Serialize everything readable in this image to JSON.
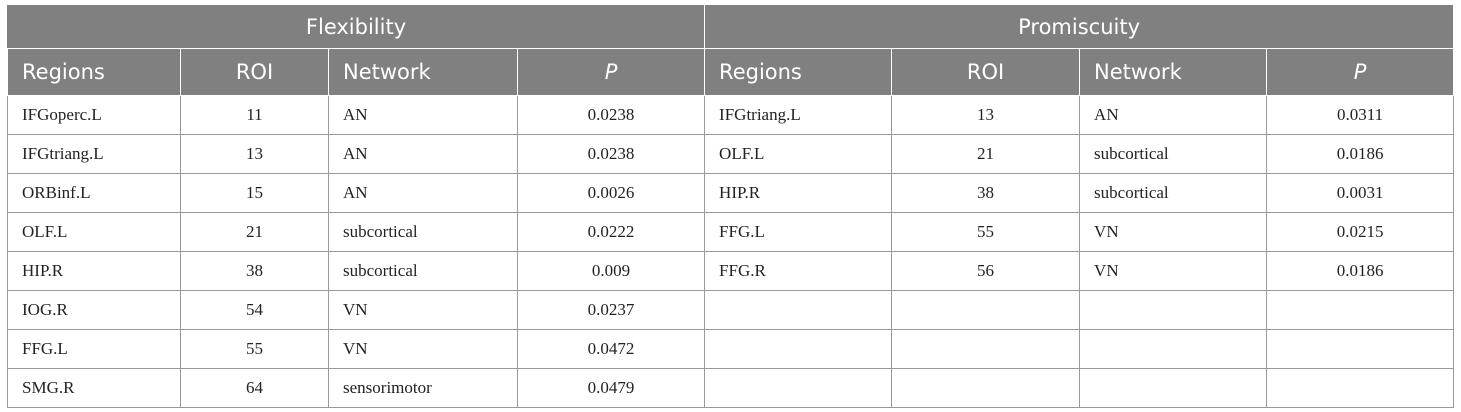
{
  "tables": [
    {
      "title": "Flexibility",
      "columns": [
        "Regions",
        "ROI",
        "Network",
        "P"
      ],
      "rows": [
        [
          "IFGoperc.L",
          11,
          "AN",
          0.0238
        ],
        [
          "IFGtriang.L",
          13,
          "AN",
          0.0238
        ],
        [
          "ORBinf.L",
          15,
          "AN",
          0.0026
        ],
        [
          "OLF.L",
          21,
          "subcortical",
          0.0222
        ],
        [
          "HIP.R",
          38,
          "subcortical",
          0.009
        ],
        [
          "IOG.R",
          54,
          "VN",
          0.0237
        ],
        [
          "FFG.L",
          55,
          "VN",
          0.0472
        ],
        [
          "SMG.R",
          64,
          "sensorimotor",
          0.0479
        ]
      ]
    },
    {
      "title": "Promiscuity",
      "columns": [
        "Regions",
        "ROI",
        "Network",
        "P"
      ],
      "rows": [
        [
          "IFGtriang.L",
          13,
          "AN",
          0.0311
        ],
        [
          "OLF.L",
          21,
          "subcortical",
          0.0186
        ],
        [
          "HIP.R",
          38,
          "subcortical",
          0.0031
        ],
        [
          "FFG.L",
          55,
          "VN",
          0.0215
        ],
        [
          "FFG.R",
          56,
          "VN",
          0.0186
        ]
      ]
    }
  ]
}
